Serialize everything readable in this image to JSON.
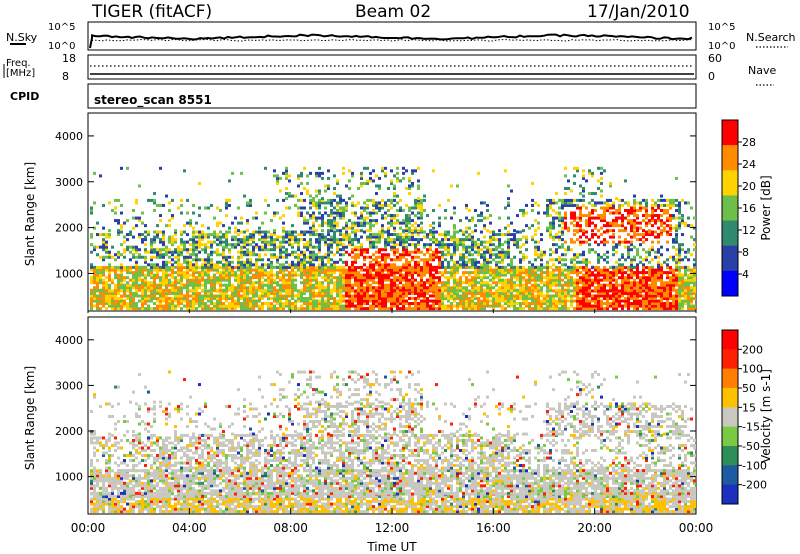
{
  "header": {
    "radar": "TIGER (fitACF)",
    "beam": "Beam 02",
    "date": "17/Jan/2010"
  },
  "top_panels": {
    "nsky_label": "N.Sky",
    "nsearch_label": "N.Search",
    "nsky_tick_hi": "10^5",
    "nsky_tick_lo": "10^0",
    "nsearch_tick_hi": "10^5",
    "nsearch_tick_lo": "10^0",
    "freq_label_1": "Freq.",
    "freq_label_2": "[MHz]",
    "freq_tick_hi": "18",
    "freq_tick_lo": "8",
    "nave_label": "Nave",
    "nave_tick_hi": "60",
    "nave_tick_lo": "0",
    "cpid_label": "CPID",
    "cpid_value": "stereo_scan 8551"
  },
  "chart_data": [
    {
      "type": "heatmap",
      "name": "Power",
      "ylabel": "Slant Range [km]",
      "yticks": [
        "1000",
        "2000",
        "3000",
        "4000"
      ],
      "ylim": [
        180,
        4500
      ],
      "colorbar_label": "Power [dB]",
      "colorbar_ticks": [
        "4",
        "8",
        "12",
        "16",
        "20",
        "24",
        "28"
      ],
      "colorbar_range": [
        0,
        32
      ],
      "colors": [
        "#0000ff",
        "#2a40a8",
        "#2f8a6e",
        "#6cc04a",
        "#ffd200",
        "#ff8c00",
        "#ff0000"
      ]
    },
    {
      "type": "heatmap",
      "name": "Velocity",
      "ylabel": "Slant Range [km]",
      "yticks": [
        "1000",
        "2000",
        "3000",
        "4000"
      ],
      "ylim": [
        180,
        4500
      ],
      "colorbar_label": "Velocity [m s-1]",
      "colorbar_ticks": [
        "200",
        "100",
        "50",
        "15",
        "-15",
        "-50",
        "-100",
        "-200"
      ],
      "colorbar_range": [
        -250,
        250
      ],
      "colors": [
        "#1c2fbf",
        "#1e5aa0",
        "#2e8e5a",
        "#7ac943",
        "#c8c8c0",
        "#ffc000",
        "#ff8000",
        "#ff2000",
        "#ff0000"
      ]
    }
  ],
  "xaxis": {
    "label": "Time UT",
    "ticks": [
      "00:00",
      "04:00",
      "08:00",
      "12:00",
      "16:00",
      "20:00",
      "00:00"
    ]
  }
}
